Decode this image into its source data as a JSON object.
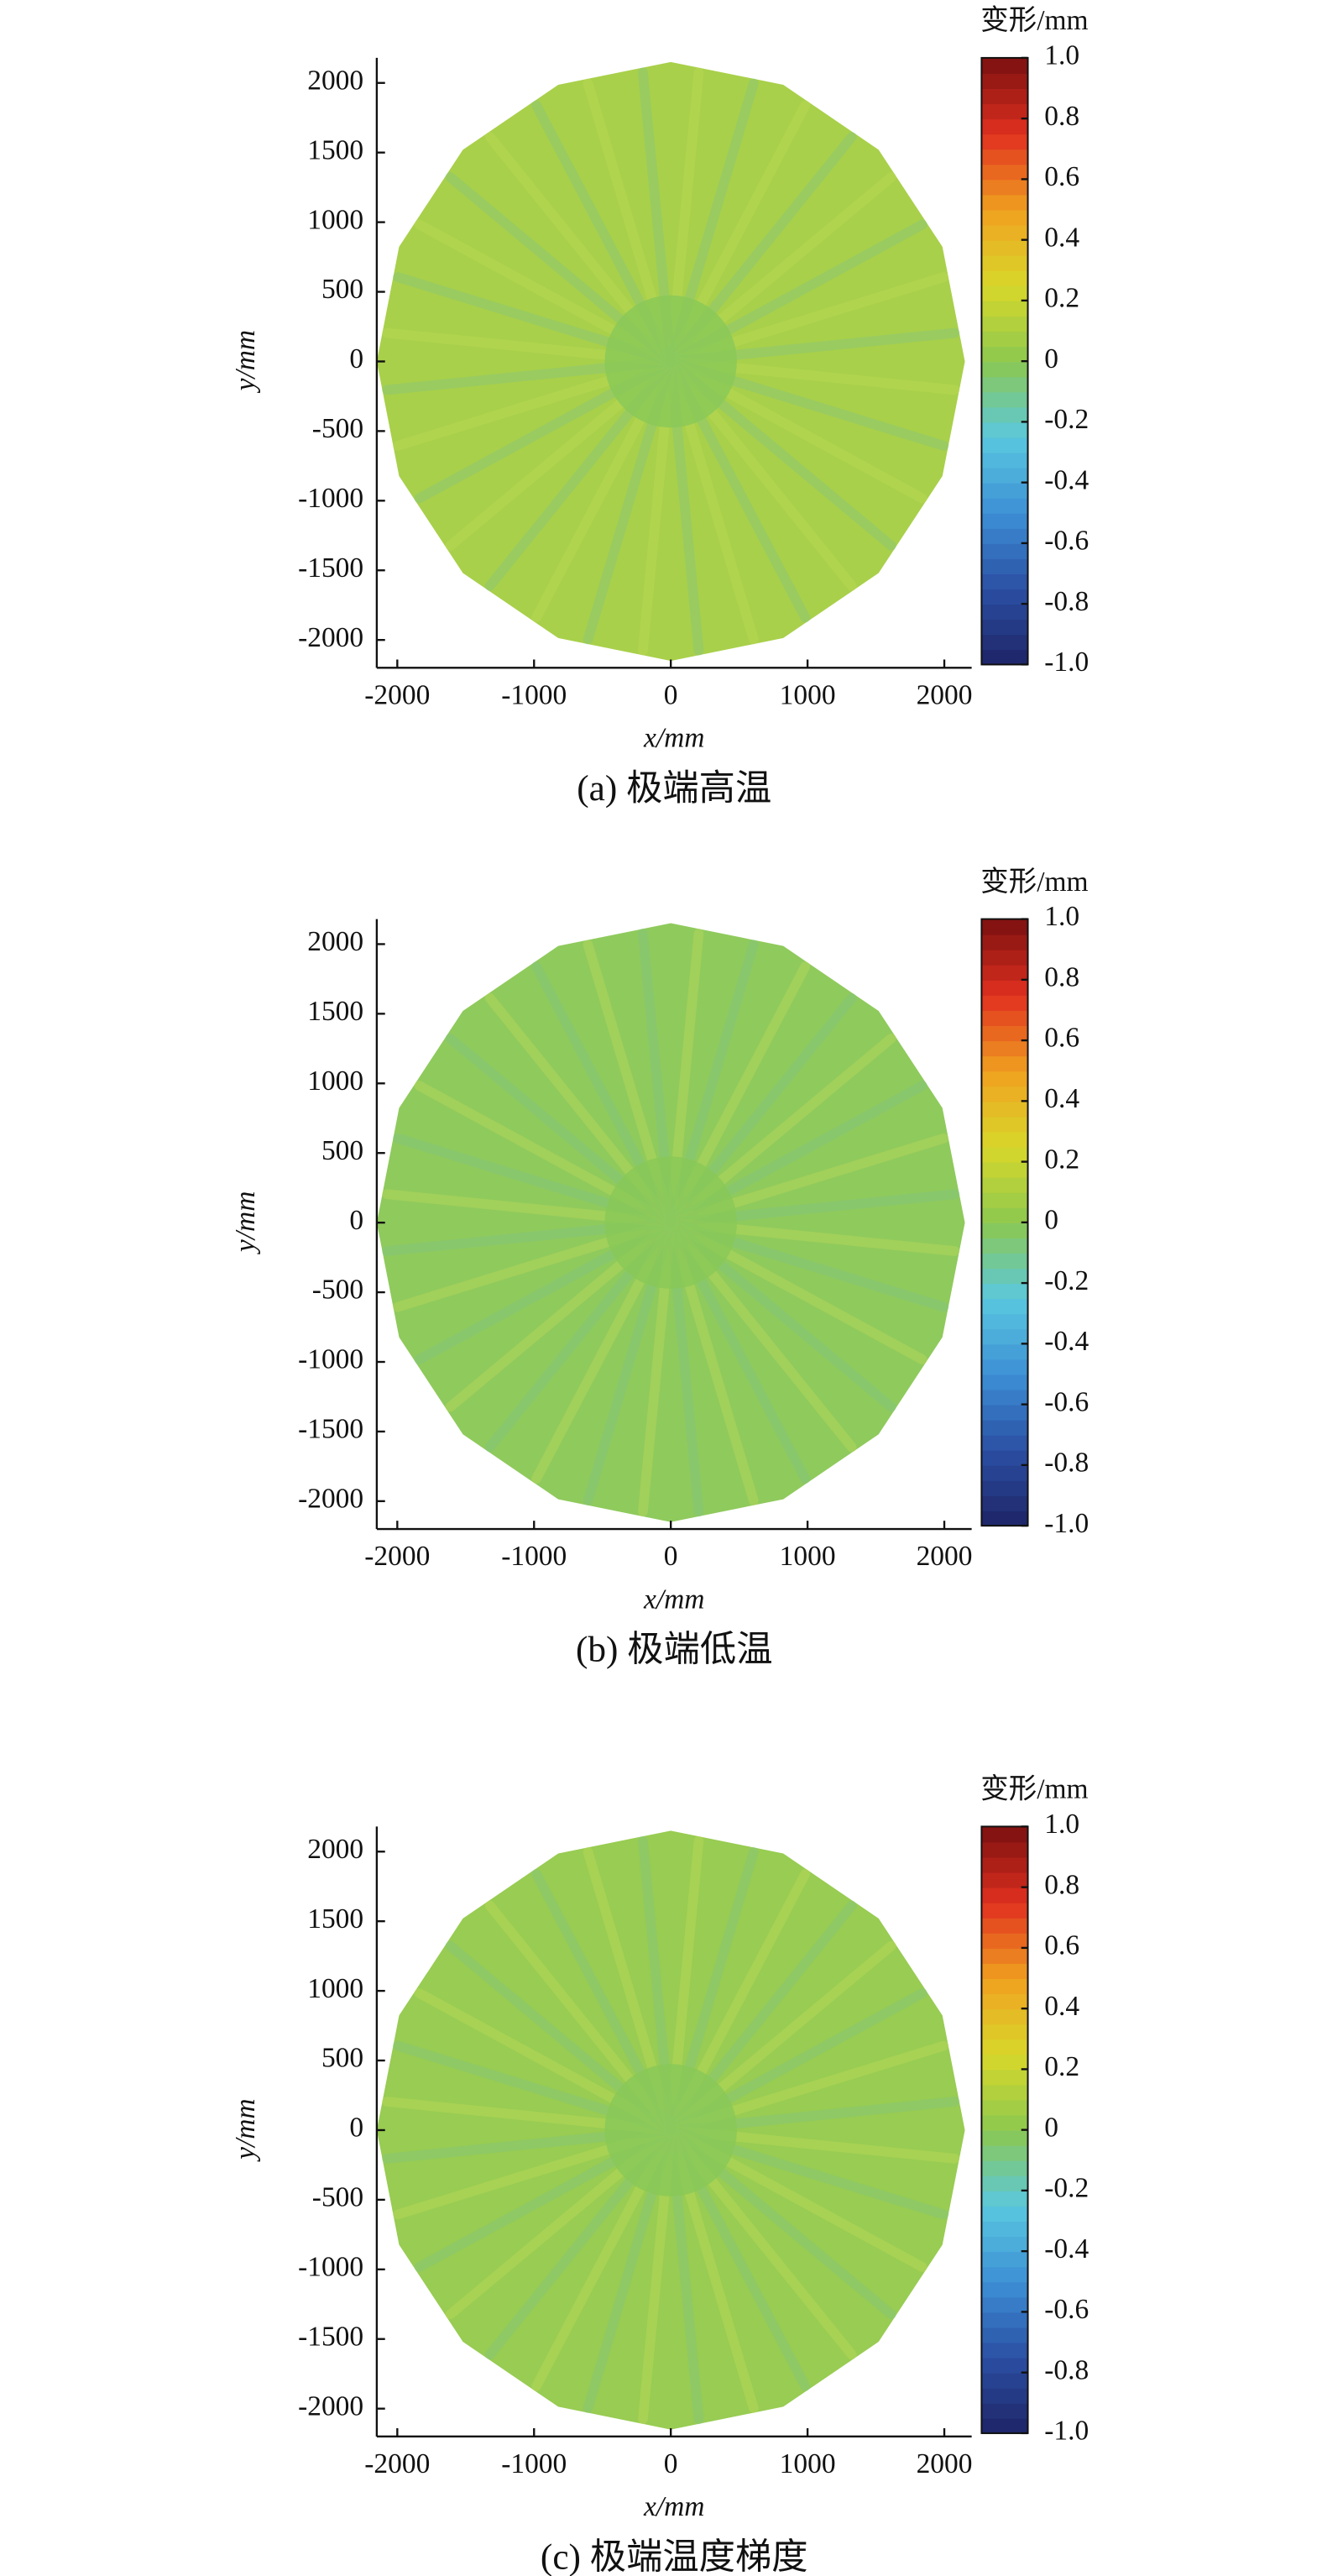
{
  "chart_data": [
    {
      "type": "contour",
      "title": "(a) 极端高温",
      "xlabel": "x/mm",
      "ylabel": "y/mm",
      "colorbar_label": "变形/mm",
      "xlim": [
        -2150,
        2200
      ],
      "ylim": [
        -2200,
        2180
      ],
      "xticks": [
        -2000,
        -1000,
        0,
        1000,
        2000
      ],
      "yticks": [
        -2000,
        -1500,
        -1000,
        -500,
        0,
        500,
        1000,
        1500,
        2000
      ],
      "clim": [
        -1,
        1
      ],
      "cticks": [
        {
          "value": -1,
          "label": "-1.0"
        },
        -0.8,
        -0.6,
        -0.4,
        -0.2,
        0,
        0.2,
        0.4,
        0.6,
        0.8,
        {
          "value": 1,
          "label": "1.0"
        }
      ],
      "colormap": [
        "#1e2466",
        "#2b4fa3",
        "#3d8fd6",
        "#5ac8de",
        "#8cc850",
        "#d8d82a",
        "#f0a020",
        "#e03020",
        "#7a1010"
      ],
      "color": "#a8d04a"
    },
    {
      "type": "contour",
      "title": "(b) 极端低温",
      "xlabel": "x/mm",
      "ylabel": "y/mm",
      "colorbar_label": "变形/mm",
      "xlim": [
        -2150,
        2200
      ],
      "ylim": [
        -2200,
        2180
      ],
      "xticks": [
        -2000,
        -1000,
        0,
        1000,
        2000
      ],
      "yticks": [
        -2000,
        -1500,
        -1000,
        -500,
        0,
        500,
        1000,
        1500,
        2000
      ],
      "clim": [
        -1,
        1
      ],
      "cticks": [
        {
          "value": -1,
          "label": "-1.0"
        },
        -0.8,
        -0.6,
        -0.4,
        -0.2,
        0,
        0.2,
        0.4,
        0.6,
        0.8,
        {
          "value": 1,
          "label": "1.0"
        }
      ],
      "colormap": [
        "#1e2466",
        "#2b4fa3",
        "#3d8fd6",
        "#5ac8de",
        "#8cc850",
        "#d8d82a",
        "#f0a020",
        "#e03020",
        "#7a1010"
      ],
      "color": "#8fca5c"
    },
    {
      "type": "contour",
      "title": "(c) 极端温度梯度",
      "xlabel": "x/mm",
      "ylabel": "y/mm",
      "colorbar_label": "变形/mm",
      "xlim": [
        -2150,
        2200
      ],
      "ylim": [
        -2200,
        2180
      ],
      "xticks": [
        -2000,
        -1000,
        0,
        1000,
        2000
      ],
      "yticks": [
        -2000,
        -1500,
        -1000,
        -500,
        0,
        500,
        1000,
        1500,
        2000
      ],
      "clim": [
        -1,
        1
      ],
      "cticks": [
        {
          "value": -1,
          "label": "-1.0"
        },
        -0.8,
        -0.6,
        -0.4,
        -0.2,
        0,
        0.2,
        0.4,
        0.6,
        0.8,
        {
          "value": 1,
          "label": "1.0"
        }
      ],
      "colormap": [
        "#1e2466",
        "#2b4fa3",
        "#3d8fd6",
        "#5ac8de",
        "#8cc850",
        "#d8d82a",
        "#f0a020",
        "#e03020",
        "#7a1010"
      ],
      "color": "#98cc52"
    }
  ]
}
